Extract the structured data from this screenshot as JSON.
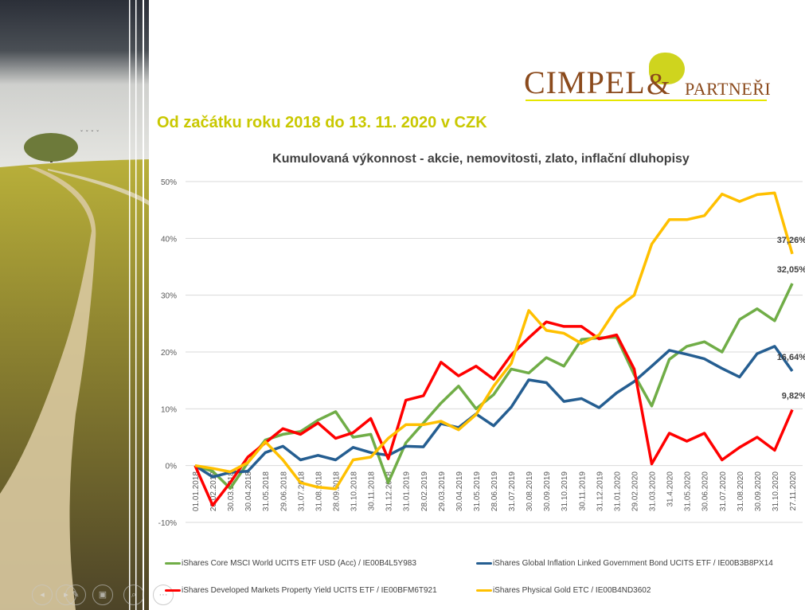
{
  "logo": {
    "name": "Cimpel",
    "ampersand": "&",
    "suffix": "partneři"
  },
  "subtitle": "Od začátku roku 2018 do 13. 11. 2020 v CZK",
  "chart_data": {
    "type": "line",
    "title": "Kumulovaná výkonnost - akcie, nemovitosti, zlato, inflační dluhopisy",
    "xlabel": "",
    "ylabel": "",
    "ylim": [
      -10,
      50
    ],
    "yticks": [
      -10,
      0,
      10,
      20,
      30,
      40,
      50
    ],
    "ytick_labels": [
      "-10%",
      "0%",
      "10%",
      "20%",
      "30%",
      "40%",
      "50%"
    ],
    "grid": true,
    "legend_position": "bottom",
    "categories": [
      "01.01.2018",
      "28.02.2018",
      "30.03.2018",
      "30.04.2018",
      "31.05.2018",
      "29.06.2018",
      "31.07.2018",
      "31.08.2018",
      "28.09.2018",
      "31.10.2018",
      "30.11.2018",
      "31.12.2018",
      "31.01.2019",
      "28.02.2019",
      "29.03.2019",
      "30.04.2019",
      "31.05.2019",
      "28.06.2019",
      "31.07.2019",
      "30.08.2019",
      "30.09.2019",
      "31.10.2019",
      "30.11.2019",
      "31.12.2019",
      "31.01.2020",
      "29.02.2020",
      "31.03.2020",
      "31.4.2020",
      "31.05.2020",
      "30.06.2020",
      "31.07.2020",
      "31.08.2020",
      "30.09.2020",
      "31.10.2020",
      "27.11.2020"
    ],
    "series": [
      {
        "name": "iShares Core MSCI World UCITS ETF USD (Acc) / IE00B4L5Y983",
        "color": "#70ad47",
        "end_label": "32,05%",
        "values": [
          0,
          -1,
          -4,
          0.5,
          4.5,
          5.5,
          6,
          8,
          9.5,
          5,
          5.5,
          -3,
          4,
          7.5,
          11,
          14,
          10,
          12.5,
          17,
          16.3,
          19,
          17.5,
          22.2,
          22.5,
          22.6,
          16,
          10.5,
          18.7,
          21,
          21.8,
          20,
          25.7,
          27.6,
          25.5,
          32.05
        ]
      },
      {
        "name": "iShares Global Inflation Linked Government Bond UCITS ETF / IE00B3B8PX14",
        "color": "#255e91",
        "end_label": "16,64%",
        "values": [
          0,
          -2,
          -1.2,
          -1,
          2.3,
          3.4,
          1,
          1.8,
          1,
          3.2,
          2.3,
          1.8,
          3.4,
          3.3,
          7.4,
          6.7,
          9.1,
          7,
          10.3,
          15.1,
          14.6,
          11.3,
          11.8,
          10.2,
          12.8,
          14.8,
          17.5,
          20.3,
          19.6,
          18.8,
          17.1,
          15.6,
          19.7,
          21,
          16.64
        ]
      },
      {
        "name": "iShares Developed Markets Property Yield UCITS ETF / IE00BFM6T921",
        "color": "#ff0000",
        "end_label": "9,82%",
        "values": [
          0,
          -7,
          -3,
          1.5,
          4,
          6.5,
          5.5,
          7.5,
          4.8,
          5.8,
          8.3,
          1.2,
          11.5,
          12.3,
          18.2,
          15.8,
          17.5,
          15.2,
          19.5,
          22.5,
          25.3,
          24.5,
          24.5,
          22.3,
          23,
          17,
          0.3,
          5.7,
          4.3,
          5.7,
          1,
          3.2,
          5,
          2.7,
          9.82
        ]
      },
      {
        "name": "iShares Physical Gold ETC / IE00B4ND3602",
        "color": "#ffc000",
        "end_label": "37,26%",
        "values": [
          0,
          -0.5,
          -1.1,
          0.5,
          4.2,
          1,
          -3,
          -3.8,
          -4.1,
          1,
          1.5,
          4.8,
          7.2,
          7.2,
          7.8,
          6.3,
          9,
          14,
          18,
          27.3,
          23.8,
          23.3,
          21.5,
          23,
          27.7,
          30,
          39,
          43.3,
          43.3,
          44,
          47.8,
          46.5,
          47.7,
          48,
          37.26
        ]
      }
    ]
  }
}
